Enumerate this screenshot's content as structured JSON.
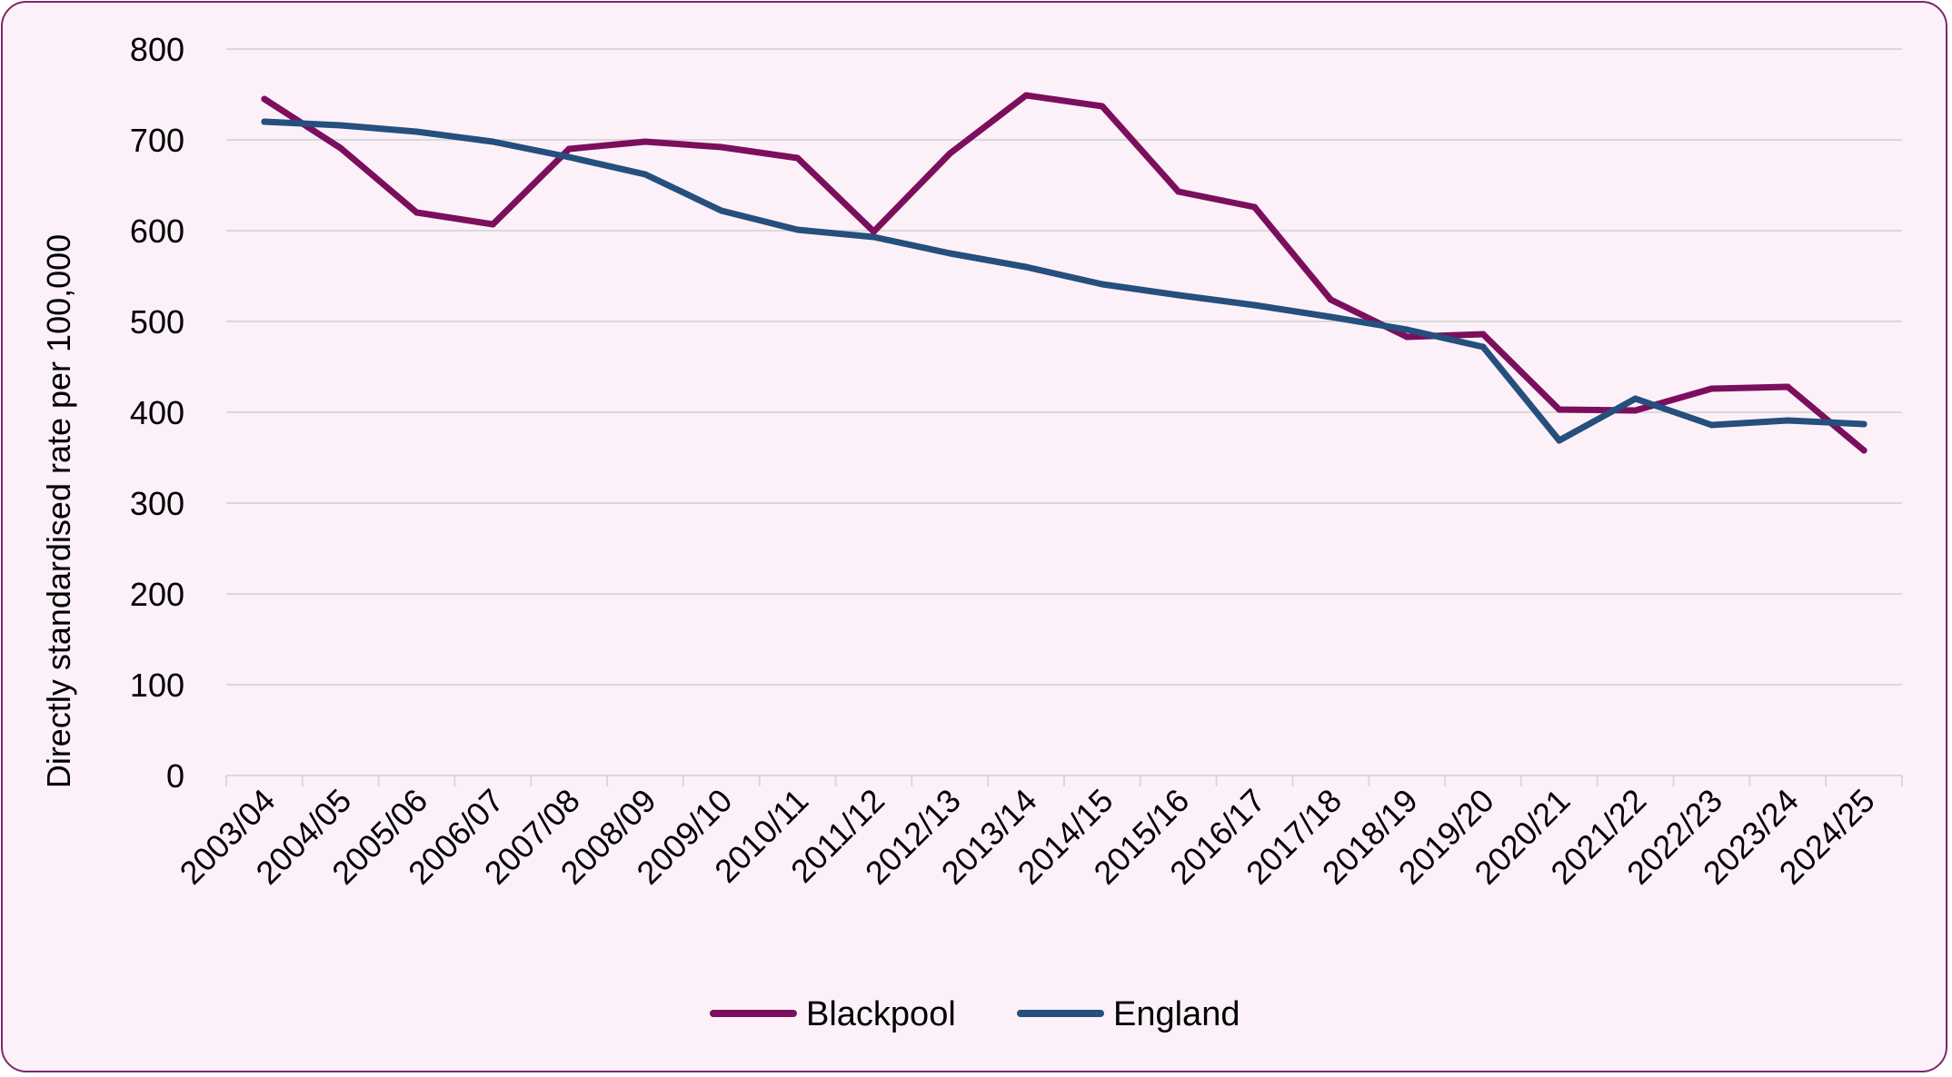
{
  "chart_data": {
    "type": "line",
    "title": "",
    "xlabel": "",
    "ylabel": "Directly standardised rate per 100,000",
    "ylim": [
      0,
      800
    ],
    "yticks": [
      0,
      100,
      200,
      300,
      400,
      500,
      600,
      700,
      800
    ],
    "grid": true,
    "legend": "bottom",
    "categories": [
      "2003/04",
      "2004/05",
      "2005/06",
      "2006/07",
      "2007/08",
      "2008/09",
      "2009/10",
      "2010/11",
      "2011/12",
      "2012/13",
      "2013/14",
      "2014/15",
      "2015/16",
      "2016/17",
      "2017/18",
      "2018/19",
      "2019/20",
      "2020/21",
      "2021/22",
      "2022/23",
      "2023/24",
      "2024/25"
    ],
    "series": [
      {
        "name": "Blackpool",
        "color": "#7b0f5e",
        "values": [
          745,
          691,
          620,
          607,
          690,
          698,
          692,
          680,
          599,
          685,
          749,
          737,
          643,
          626,
          524,
          483,
          486,
          403,
          402,
          426,
          428,
          358
        ]
      },
      {
        "name": "England",
        "color": "#254f7d",
        "values": [
          720,
          716,
          709,
          698,
          681,
          662,
          622,
          601,
          593,
          575,
          560,
          541,
          529,
          518,
          505,
          491,
          472,
          369,
          415,
          386,
          391,
          387
        ]
      }
    ]
  }
}
